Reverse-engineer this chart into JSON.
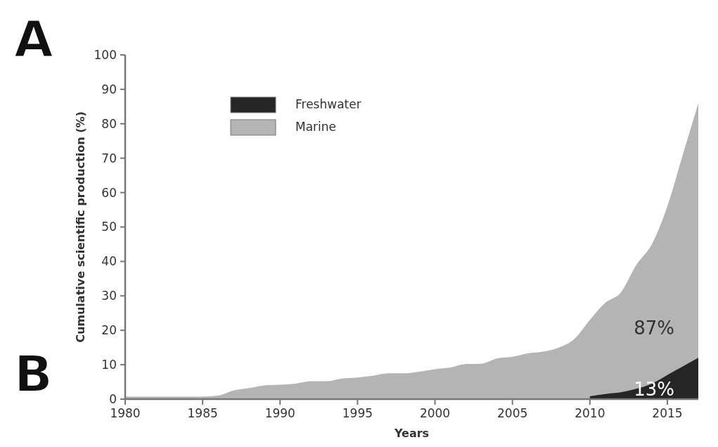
{
  "chart_data": {
    "type": "area",
    "xlabel": "Years",
    "ylabel": "Cumulative scientific production (%)",
    "xlim": [
      1980,
      2017
    ],
    "xticks": [
      1980,
      1985,
      1990,
      1995,
      2000,
      2005,
      2010,
      2015
    ],
    "ylim": [
      0,
      100
    ],
    "yticks": [
      0,
      10,
      20,
      30,
      40,
      50,
      60,
      70,
      80,
      90,
      100
    ],
    "legend": "top left",
    "grid": false,
    "series": [
      {
        "name": "Marine",
        "color": "#b4b4b4",
        "x": [
          1980,
          1985,
          1986,
          1987,
          1988,
          1989,
          1990,
          1991,
          1992,
          1993,
          1994,
          1995,
          1996,
          1997,
          1998,
          1999,
          2000,
          2001,
          2002,
          2003,
          2004,
          2005,
          2006,
          2007,
          2008,
          2009,
          2010,
          2011,
          2012,
          2013,
          2014,
          2015,
          2016,
          2017
        ],
        "values": [
          0.7,
          0.7,
          1,
          2.5,
          3.2,
          4,
          4.2,
          4.5,
          5.2,
          5.2,
          6,
          6.3,
          6.8,
          7.5,
          7.5,
          8,
          8.7,
          9.2,
          10.2,
          10.3,
          11.8,
          12.3,
          13.3,
          13.8,
          15,
          17.5,
          23,
          28,
          31,
          39,
          45,
          56,
          71,
          86
        ]
      },
      {
        "name": "Freshwater",
        "color": "#262626",
        "x": [
          2010,
          2011,
          2012,
          2013,
          2014,
          2015,
          2016,
          2017
        ],
        "values": [
          0.8,
          1.5,
          2,
          3,
          4.5,
          7,
          9.5,
          12
        ]
      }
    ],
    "annotations": [
      "87%",
      "13%",
      "A",
      "B"
    ]
  }
}
